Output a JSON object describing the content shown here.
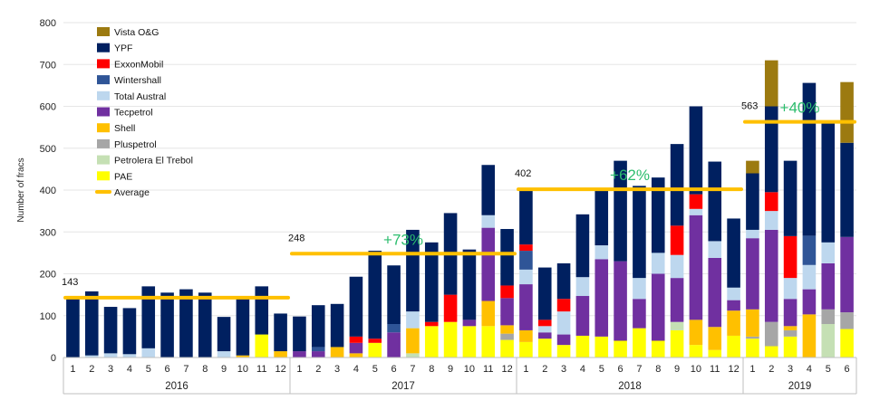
{
  "chart_data": {
    "type": "bar",
    "stacked": true,
    "ylabel": "Number of fracs",
    "ylim": [
      0,
      800
    ],
    "yticks": [
      0,
      100,
      200,
      300,
      400,
      500,
      600,
      700,
      800
    ],
    "legend_position": "top-left",
    "years": [
      {
        "label": "2016",
        "months": 12
      },
      {
        "label": "2017",
        "months": 12
      },
      {
        "label": "2018",
        "months": 12
      },
      {
        "label": "2019",
        "months": 6
      }
    ],
    "categories": [
      "1",
      "2",
      "3",
      "4",
      "5",
      "6",
      "7",
      "8",
      "9",
      "10",
      "11",
      "12",
      "1",
      "2",
      "3",
      "4",
      "5",
      "6",
      "7",
      "8",
      "9",
      "10",
      "11",
      "12",
      "1",
      "2",
      "3",
      "4",
      "5",
      "6",
      "7",
      "8",
      "9",
      "10",
      "11",
      "12",
      "1",
      "2",
      "3",
      "4",
      "5",
      "6"
    ],
    "series": [
      {
        "name": "PAE",
        "color": "#ffff00",
        "values": [
          0,
          0,
          0,
          0,
          0,
          0,
          0,
          0,
          0,
          0,
          55,
          0,
          0,
          0,
          0,
          0,
          35,
          0,
          0,
          75,
          85,
          75,
          75,
          42,
          37,
          45,
          30,
          52,
          50,
          40,
          70,
          40,
          65,
          30,
          18,
          52,
          45,
          27,
          50,
          0,
          0,
          68
        ]
      },
      {
        "name": "Petrolera El Trebol",
        "color": "#c5e0b4",
        "values": [
          0,
          0,
          0,
          0,
          0,
          0,
          0,
          0,
          0,
          0,
          0,
          0,
          0,
          0,
          0,
          0,
          0,
          0,
          10,
          0,
          0,
          0,
          0,
          0,
          0,
          0,
          0,
          0,
          0,
          0,
          0,
          0,
          20,
          0,
          0,
          0,
          0,
          0,
          0,
          0,
          80,
          0
        ]
      },
      {
        "name": "Pluspetrol",
        "color": "#a6a6a6",
        "values": [
          0,
          0,
          0,
          0,
          0,
          0,
          0,
          0,
          0,
          0,
          0,
          0,
          0,
          0,
          0,
          0,
          0,
          0,
          0,
          0,
          0,
          0,
          0,
          15,
          0,
          0,
          0,
          0,
          0,
          0,
          0,
          0,
          0,
          0,
          0,
          0,
          5,
          58,
          15,
          0,
          35,
          40
        ]
      },
      {
        "name": "Shell",
        "color": "#ffc000",
        "values": [
          0,
          0,
          0,
          0,
          0,
          0,
          0,
          0,
          0,
          5,
          0,
          15,
          0,
          0,
          25,
          10,
          0,
          0,
          60,
          0,
          0,
          0,
          60,
          20,
          28,
          0,
          0,
          0,
          0,
          0,
          0,
          0,
          0,
          60,
          55,
          60,
          65,
          0,
          10,
          103,
          0,
          0
        ]
      },
      {
        "name": "Tecpetrol",
        "color": "#7030a0",
        "values": [
          0,
          0,
          0,
          0,
          0,
          0,
          0,
          0,
          0,
          0,
          0,
          0,
          15,
          15,
          0,
          25,
          0,
          60,
          0,
          0,
          0,
          15,
          175,
          65,
          110,
          15,
          25,
          95,
          185,
          190,
          70,
          160,
          105,
          250,
          165,
          25,
          170,
          220,
          65,
          60,
          110,
          180
        ]
      },
      {
        "name": "Total Austral",
        "color": "#bdd7ee",
        "values": [
          0,
          5,
          10,
          8,
          22,
          0,
          0,
          0,
          15,
          0,
          0,
          0,
          0,
          0,
          0,
          0,
          0,
          0,
          40,
          0,
          0,
          0,
          30,
          0,
          35,
          15,
          55,
          45,
          33,
          0,
          50,
          50,
          55,
          15,
          40,
          30,
          20,
          45,
          50,
          58,
          50,
          0
        ]
      },
      {
        "name": "Wintershall",
        "color": "#2f5597",
        "values": [
          0,
          0,
          0,
          0,
          0,
          0,
          0,
          0,
          0,
          0,
          0,
          0,
          0,
          10,
          0,
          0,
          0,
          20,
          0,
          0,
          0,
          0,
          0,
          0,
          45,
          0,
          0,
          0,
          0,
          0,
          0,
          0,
          0,
          0,
          0,
          0,
          0,
          0,
          0,
          70,
          0,
          0
        ]
      },
      {
        "name": "ExxonMobil",
        "color": "#ff0000",
        "values": [
          0,
          0,
          0,
          0,
          0,
          0,
          0,
          0,
          0,
          0,
          0,
          0,
          0,
          0,
          0,
          15,
          10,
          0,
          0,
          10,
          65,
          0,
          0,
          30,
          15,
          15,
          30,
          0,
          0,
          0,
          0,
          0,
          70,
          35,
          0,
          0,
          0,
          45,
          100,
          0,
          0,
          0
        ]
      },
      {
        "name": "YPF",
        "color": "#002060",
        "values": [
          143,
          153,
          111,
          110,
          148,
          155,
          163,
          155,
          82,
          135,
          115,
          90,
          83,
          100,
          103,
          143,
          210,
          140,
          195,
          190,
          195,
          168,
          120,
          135,
          130,
          125,
          85,
          150,
          130,
          240,
          220,
          180,
          195,
          210,
          190,
          165,
          135,
          205,
          180,
          365,
          285,
          225
        ]
      },
      {
        "name": "Vista O&G",
        "color": "#9c7a10",
        "values": [
          0,
          0,
          0,
          0,
          0,
          0,
          0,
          0,
          0,
          0,
          0,
          0,
          0,
          0,
          0,
          0,
          0,
          0,
          0,
          0,
          0,
          0,
          0,
          0,
          0,
          0,
          0,
          0,
          0,
          0,
          0,
          0,
          0,
          0,
          0,
          0,
          30,
          110,
          0,
          0,
          0,
          145
        ]
      }
    ],
    "averages": [
      {
        "label": "143",
        "value": 143,
        "from": 0,
        "to": 11,
        "change": ""
      },
      {
        "label": "248",
        "value": 248,
        "from": 12,
        "to": 23,
        "change": "+73%"
      },
      {
        "label": "402",
        "value": 402,
        "from": 24,
        "to": 35,
        "change": "+62%"
      },
      {
        "label": "563",
        "value": 563,
        "from": 36,
        "to": 41,
        "change": "+40%"
      }
    ],
    "average_legend": {
      "name": "Average",
      "color": "#ffc000"
    }
  }
}
